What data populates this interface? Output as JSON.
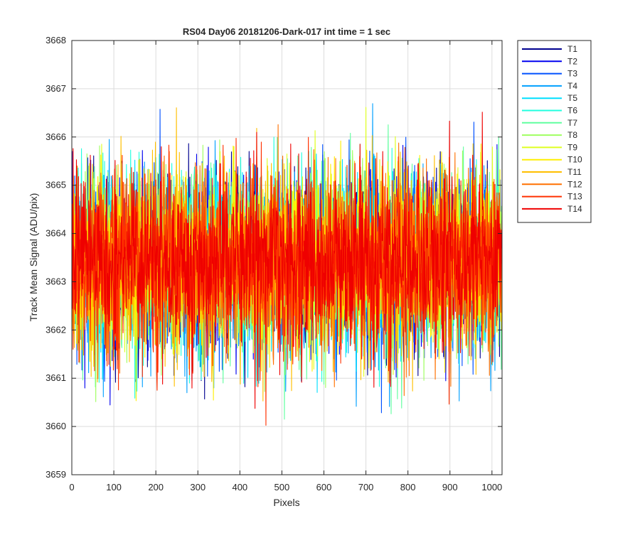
{
  "chart_data": {
    "type": "line",
    "title": "RS04 Day06 20181206-Dark-017 int time = 1 sec",
    "xlabel": "Pixels",
    "ylabel": "Track Mean Signal (ADU/pix)",
    "xlim": [
      0,
      1024
    ],
    "ylim": [
      3659,
      3668
    ],
    "x_ticks": [
      0,
      100,
      200,
      300,
      400,
      500,
      600,
      700,
      800,
      900,
      1000
    ],
    "y_ticks": [
      3659,
      3660,
      3661,
      3662,
      3663,
      3664,
      3665,
      3666,
      3667,
      3668
    ],
    "grid": true,
    "legend_position": "outside-top-right",
    "x_range": [
      1,
      1024
    ],
    "noise_model": {
      "mean": 3663.4,
      "std": 0.9,
      "min_observed": 3659.9,
      "max_observed": 3667.4
    },
    "series": [
      {
        "name": "T1",
        "color": "#00008f"
      },
      {
        "name": "T2",
        "color": "#0000ef"
      },
      {
        "name": "T3",
        "color": "#0050ff"
      },
      {
        "name": "T4",
        "color": "#00a0ff"
      },
      {
        "name": "T5",
        "color": "#00dfff"
      },
      {
        "name": "T6",
        "color": "#20ffdf"
      },
      {
        "name": "T7",
        "color": "#60ff9f"
      },
      {
        "name": "T8",
        "color": "#9fff60"
      },
      {
        "name": "T9",
        "color": "#dfff20"
      },
      {
        "name": "T10",
        "color": "#ffef00"
      },
      {
        "name": "T11",
        "color": "#ffbf00"
      },
      {
        "name": "T12",
        "color": "#ff7000"
      },
      {
        "name": "T13",
        "color": "#ff3000"
      },
      {
        "name": "T14",
        "color": "#ef0000"
      }
    ]
  }
}
